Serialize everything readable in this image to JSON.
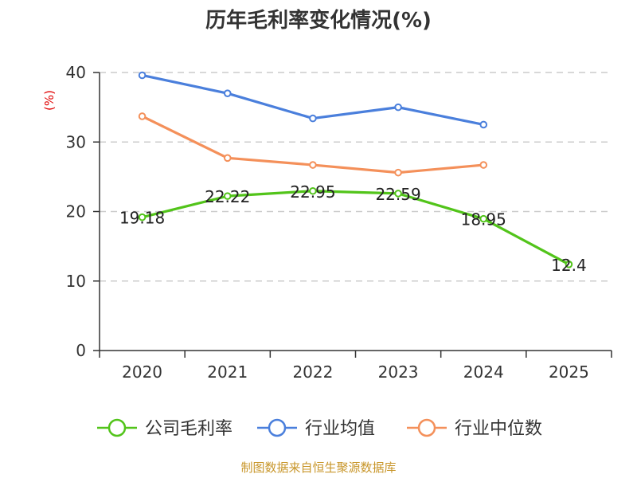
{
  "chart_data": {
    "type": "line",
    "title": "历年毛利率变化情况(%)",
    "ylabel": "(%)",
    "xlabel": "",
    "categories": [
      "2020",
      "2021",
      "2022",
      "2023",
      "2024",
      "2025"
    ],
    "ylim": [
      0,
      40
    ],
    "yticks": [
      0,
      10,
      20,
      30,
      40
    ],
    "grid": true,
    "legend_position": "bottom",
    "series": [
      {
        "name": "公司毛利率",
        "color": "#52c41a",
        "values": [
          19.18,
          22.22,
          22.95,
          22.59,
          18.95,
          12.4
        ],
        "labels": [
          "19.18",
          "22.22",
          "22.95",
          "22.59",
          "18.95",
          "12.4"
        ]
      },
      {
        "name": "行业均值",
        "color": "#4a7fdc",
        "values": [
          39.6,
          37.0,
          33.4,
          35.0,
          32.5,
          null
        ]
      },
      {
        "name": "行业中位数",
        "color": "#f4905a",
        "values": [
          33.7,
          27.7,
          26.7,
          25.6,
          26.7,
          null
        ]
      }
    ]
  },
  "source_text": "制图数据来自恒生聚源数据库"
}
